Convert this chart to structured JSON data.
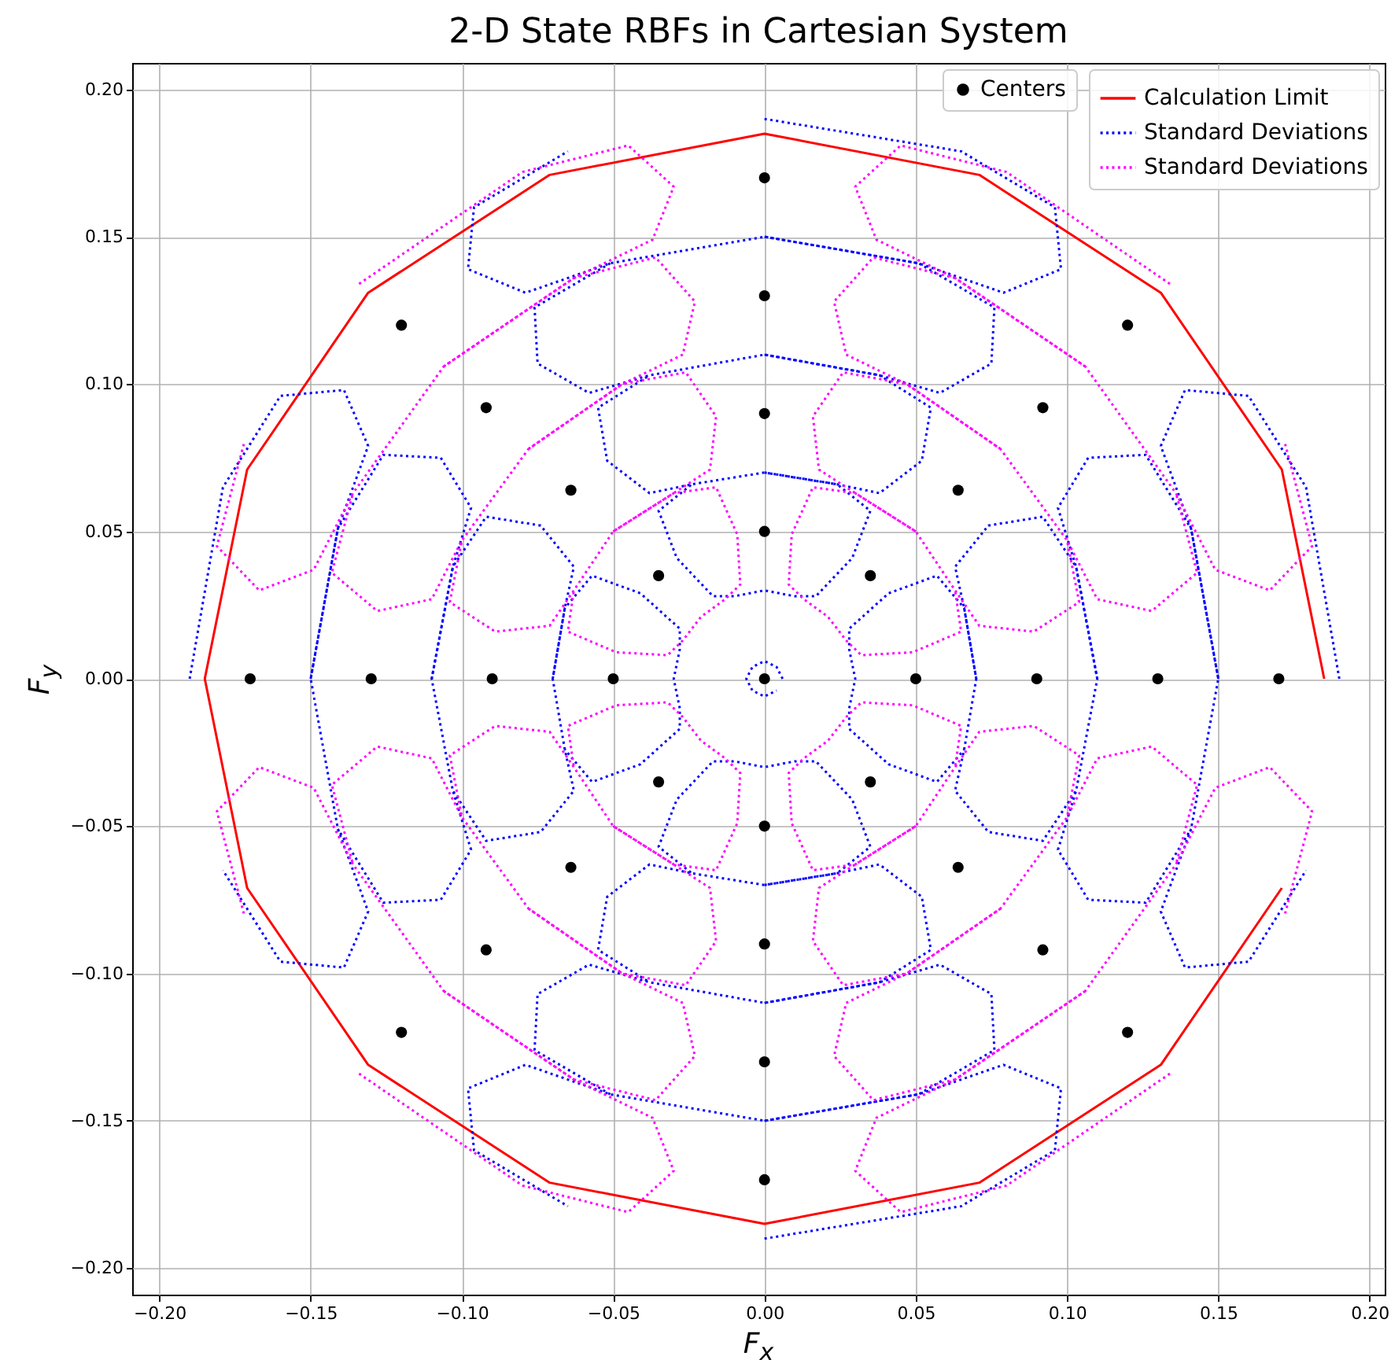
{
  "chart_data": {
    "type": "scatter",
    "title": "2-D State RBFs in Cartesian System",
    "xlabel": "F$_{x}$",
    "ylabel": "F$_{y}$",
    "xlim": [
      -0.209,
      0.205
    ],
    "ylim": [
      -0.209,
      0.209
    ],
    "xticks": [
      {
        "value": -0.2,
        "label": "−0.20"
      },
      {
        "value": -0.15,
        "label": "−0.15"
      },
      {
        "value": -0.1,
        "label": "−0.10"
      },
      {
        "value": -0.05,
        "label": "−0.05"
      },
      {
        "value": 0,
        "label": "0.00"
      },
      {
        "value": 0.05,
        "label": "0.05"
      },
      {
        "value": 0.1,
        "label": "0.10"
      },
      {
        "value": 0.15,
        "label": "0.15"
      },
      {
        "value": 0.2,
        "label": "0.20"
      }
    ],
    "yticks": [
      {
        "value": -0.2,
        "label": "−0.20"
      },
      {
        "value": -0.15,
        "label": "−0.15"
      },
      {
        "value": -0.1,
        "label": "−0.10"
      },
      {
        "value": -0.05,
        "label": "−0.05"
      },
      {
        "value": 0,
        "label": "0.00"
      },
      {
        "value": 0.05,
        "label": "0.05"
      },
      {
        "value": 0.1,
        "label": "0.10"
      },
      {
        "value": 0.15,
        "label": "0.15"
      },
      {
        "value": 0.2,
        "label": "0.20"
      }
    ],
    "grid": true,
    "legend": "top right",
    "line_style": "dotted",
    "series": [
      {
        "name": "Centers",
        "marker": "circle",
        "color": "#000000",
        "x": [
          0,
          0.05,
          0.035,
          0,
          -0.035,
          -0.05,
          -0.035,
          0,
          0.035,
          0.09,
          0.064,
          0,
          -0.064,
          -0.09,
          -0.064,
          0,
          0.064,
          0.13,
          0.092,
          0,
          -0.092,
          -0.13,
          -0.092,
          0,
          0.092,
          0.17,
          0.12,
          0,
          -0.12,
          -0.17,
          -0.12,
          0,
          0.12
        ],
        "values": [
          0,
          0,
          0.035,
          0.05,
          0.035,
          0,
          -0.035,
          -0.05,
          -0.035,
          0,
          0.064,
          0.09,
          0.064,
          0,
          -0.064,
          -0.09,
          -0.064,
          0,
          0.092,
          0.13,
          0.092,
          0,
          -0.092,
          -0.13,
          -0.092,
          0,
          0.12,
          0.17,
          0.12,
          0,
          -0.12,
          -0.17,
          -0.12
        ]
      },
      {
        "name": "Calculation Limit",
        "type": "line",
        "line_style": "solid",
        "color": "#ff0000",
        "x": [
          0.185,
          0.171,
          0.131,
          0.071,
          0,
          -0.071,
          -0.131,
          -0.171,
          -0.185,
          -0.171,
          -0.131,
          -0.071,
          0,
          0.071,
          0.131,
          0.171
        ],
        "values": [
          0,
          0.071,
          0.131,
          0.171,
          0.185,
          0.171,
          0.131,
          0.071,
          0,
          -0.071,
          -0.131,
          -0.171,
          -0.185,
          -0.171,
          -0.131,
          -0.071
        ]
      },
      {
        "name": "Standard Deviations",
        "type": "line",
        "color": "#0000ff",
        "x": [
          0,
          0.065,
          0.096,
          0.098,
          0.079,
          0.051,
          0,
          -0.051,
          -0.079,
          -0.098,
          -0.096,
          -0.065
        ],
        "values": [
          0.19,
          0.179,
          0.16,
          0.139,
          0.131,
          0.141,
          0.15,
          0.141,
          0.131,
          0.139,
          0.16,
          0.179
        ]
      },
      {
        "type": "line",
        "color": "#0000ff",
        "x": [
          0,
          0.065,
          0.096,
          0.098,
          0.079,
          0.051,
          0,
          -0.051,
          -0.079,
          -0.098,
          -0.096,
          -0.065
        ],
        "values": [
          -0.19,
          -0.179,
          -0.16,
          -0.139,
          -0.131,
          -0.141,
          -0.15,
          -0.141,
          -0.131,
          -0.139,
          -0.16,
          -0.179
        ]
      },
      {
        "type": "line",
        "color": "#0000ff",
        "x": [
          0.19,
          0.179,
          0.16,
          0.139,
          0.131,
          0.141,
          0.15,
          0.141,
          0.131,
          0.139,
          0.16,
          0.179
        ],
        "values": [
          0,
          0.065,
          0.096,
          0.098,
          0.079,
          0.051,
          0,
          -0.051,
          -0.079,
          -0.098,
          -0.096,
          -0.065
        ]
      },
      {
        "type": "line",
        "color": "#0000ff",
        "x": [
          -0.19,
          -0.179,
          -0.16,
          -0.139,
          -0.131,
          -0.141,
          -0.15,
          -0.141,
          -0.131,
          -0.139,
          -0.16,
          -0.179
        ],
        "values": [
          0,
          0.065,
          0.096,
          0.098,
          0.079,
          0.051,
          0,
          -0.051,
          -0.079,
          -0.098,
          -0.096,
          -0.065
        ]
      },
      {
        "type": "line",
        "color": "#0000ff",
        "x": [
          0,
          0.051,
          0.076,
          0.075,
          0.058,
          0.038,
          0,
          -0.038,
          -0.058,
          -0.075,
          -0.076,
          -0.051
        ],
        "values": [
          0.15,
          0.141,
          0.126,
          0.107,
          0.097,
          0.103,
          0.11,
          0.103,
          0.097,
          0.107,
          0.126,
          0.141
        ]
      },
      {
        "type": "line",
        "color": "#0000ff",
        "x": [
          0,
          0.051,
          0.076,
          0.075,
          0.058,
          0.038,
          0,
          -0.038,
          -0.058,
          -0.075,
          -0.076,
          -0.051
        ],
        "values": [
          -0.15,
          -0.141,
          -0.126,
          -0.107,
          -0.097,
          -0.103,
          -0.11,
          -0.103,
          -0.097,
          -0.107,
          -0.126,
          -0.141
        ]
      },
      {
        "type": "line",
        "color": "#0000ff",
        "x": [
          0.15,
          0.141,
          0.126,
          0.107,
          0.097,
          0.103,
          0.11,
          0.103,
          0.097,
          0.107,
          0.126,
          0.141
        ],
        "values": [
          0,
          0.051,
          0.076,
          0.075,
          0.058,
          0.038,
          0,
          -0.038,
          -0.058,
          -0.075,
          -0.076,
          -0.051
        ]
      },
      {
        "type": "line",
        "color": "#0000ff",
        "x": [
          -0.15,
          -0.141,
          -0.126,
          -0.107,
          -0.097,
          -0.103,
          -0.11,
          -0.103,
          -0.097,
          -0.107,
          -0.126,
          -0.141
        ],
        "values": [
          0,
          0.051,
          0.076,
          0.075,
          0.058,
          0.038,
          0,
          -0.038,
          -0.058,
          -0.075,
          -0.076,
          -0.051
        ]
      },
      {
        "type": "line",
        "color": "#0000ff",
        "x": [
          0,
          0.038,
          0.055,
          0.052,
          0.038,
          0.024,
          0,
          -0.024,
          -0.038,
          -0.052,
          -0.055,
          -0.038
        ],
        "values": [
          0.11,
          0.103,
          0.092,
          0.074,
          0.063,
          0.066,
          0.07,
          0.066,
          0.063,
          0.074,
          0.092,
          0.103
        ]
      },
      {
        "type": "line",
        "color": "#0000ff",
        "x": [
          0,
          0.038,
          0.055,
          0.052,
          0.038,
          0.024,
          0,
          -0.024,
          -0.038,
          -0.052,
          -0.055,
          -0.038
        ],
        "values": [
          -0.11,
          -0.103,
          -0.092,
          -0.074,
          -0.063,
          -0.066,
          -0.07,
          -0.066,
          -0.063,
          -0.074,
          -0.092,
          -0.103
        ]
      },
      {
        "type": "line",
        "color": "#0000ff",
        "x": [
          0.11,
          0.103,
          0.092,
          0.074,
          0.063,
          0.066,
          0.07,
          0.066,
          0.063,
          0.074,
          0.092,
          0.103
        ],
        "values": [
          0,
          0.038,
          0.055,
          0.052,
          0.038,
          0.024,
          0,
          -0.024,
          -0.038,
          -0.052,
          -0.055,
          -0.038
        ]
      },
      {
        "type": "line",
        "color": "#0000ff",
        "x": [
          -0.11,
          -0.103,
          -0.092,
          -0.074,
          -0.063,
          -0.066,
          -0.07,
          -0.066,
          -0.063,
          -0.074,
          -0.092,
          -0.103
        ],
        "values": [
          0,
          0.038,
          0.055,
          0.052,
          0.038,
          0.024,
          0,
          -0.024,
          -0.038,
          -0.052,
          -0.055,
          -0.038
        ]
      },
      {
        "type": "line",
        "color": "#0000ff",
        "x": [
          0,
          0.024,
          0.035,
          0.029,
          0.017,
          0.01,
          0,
          -0.01,
          -0.017,
          -0.029,
          -0.035,
          -0.024
        ],
        "values": [
          0.07,
          0.066,
          0.057,
          0.041,
          0.028,
          0.028,
          0.03,
          0.028,
          0.028,
          0.041,
          0.057,
          0.066
        ]
      },
      {
        "type": "line",
        "color": "#0000ff",
        "x": [
          0,
          0.024,
          0.035,
          0.029,
          0.017,
          0.01,
          0,
          -0.01,
          -0.017,
          -0.029,
          -0.035,
          -0.024
        ],
        "values": [
          -0.07,
          -0.066,
          -0.057,
          -0.041,
          -0.028,
          -0.028,
          -0.03,
          -0.028,
          -0.028,
          -0.041,
          -0.057,
          -0.066
        ]
      },
      {
        "type": "line",
        "color": "#0000ff",
        "x": [
          0.07,
          0.066,
          0.057,
          0.041,
          0.028,
          0.028,
          0.03,
          0.028,
          0.028,
          0.041,
          0.057,
          0.066
        ],
        "values": [
          0,
          0.024,
          0.035,
          0.029,
          0.017,
          0.01,
          0,
          -0.01,
          -0.017,
          -0.029,
          -0.035,
          -0.024
        ]
      },
      {
        "type": "line",
        "color": "#0000ff",
        "x": [
          -0.07,
          -0.066,
          -0.057,
          -0.041,
          -0.028,
          -0.028,
          -0.03,
          -0.028,
          -0.028,
          -0.041,
          -0.057,
          -0.066
        ],
        "values": [
          0,
          0.024,
          0.035,
          0.029,
          0.017,
          0.01,
          0,
          -0.01,
          -0.017,
          -0.029,
          -0.035,
          -0.024
        ]
      },
      {
        "type": "line",
        "color": "#0000ff",
        "x": [
          0.006,
          0.004,
          0,
          -0.004,
          -0.006,
          -0.004,
          0,
          0.004
        ],
        "values": [
          0,
          0.004,
          0.006,
          0.004,
          0,
          -0.004,
          -0.006,
          -0.004
        ]
      },
      {
        "name": "Standard Deviations",
        "type": "line",
        "color": "#ff00ff",
        "x": [
          0.134,
          0.08,
          0.045,
          0.03,
          0.037,
          0.063,
          0.106,
          0.136,
          0.149,
          0.167,
          0.181,
          0.172
        ],
        "values": [
          0.134,
          0.172,
          0.181,
          0.167,
          0.149,
          0.136,
          0.106,
          0.063,
          0.037,
          0.03,
          0.045,
          0.08
        ]
      },
      {
        "type": "line",
        "color": "#ff00ff",
        "x": [
          -0.134,
          -0.08,
          -0.045,
          -0.03,
          -0.037,
          -0.063,
          -0.106,
          -0.136,
          -0.149,
          -0.167,
          -0.181,
          -0.172
        ],
        "values": [
          0.134,
          0.172,
          0.181,
          0.167,
          0.149,
          0.136,
          0.106,
          0.063,
          0.037,
          0.03,
          0.045,
          0.08
        ]
      },
      {
        "type": "line",
        "color": "#ff00ff",
        "x": [
          -0.134,
          -0.08,
          -0.045,
          -0.03,
          -0.037,
          -0.063,
          -0.106,
          -0.136,
          -0.149,
          -0.167,
          -0.181,
          -0.172
        ],
        "values": [
          -0.134,
          -0.172,
          -0.181,
          -0.167,
          -0.149,
          -0.136,
          -0.106,
          -0.063,
          -0.037,
          -0.03,
          -0.045,
          -0.08
        ]
      },
      {
        "type": "line",
        "color": "#ff00ff",
        "x": [
          0.134,
          0.08,
          0.045,
          0.03,
          0.037,
          0.063,
          0.106,
          0.136,
          0.149,
          0.167,
          0.181,
          0.172
        ],
        "values": [
          -0.134,
          -0.172,
          -0.181,
          -0.167,
          -0.149,
          -0.136,
          -0.106,
          -0.063,
          -0.037,
          -0.03,
          -0.045,
          -0.08
        ]
      },
      {
        "type": "line",
        "color": "#ff00ff",
        "x": [
          0.106,
          0.063,
          0.036,
          0.023,
          0.027,
          0.047,
          0.078,
          0.1,
          0.11,
          0.128,
          0.143,
          0.136
        ],
        "values": [
          0.106,
          0.136,
          0.143,
          0.128,
          0.11,
          0.1,
          0.078,
          0.047,
          0.027,
          0.023,
          0.036,
          0.063
        ]
      },
      {
        "type": "line",
        "color": "#ff00ff",
        "x": [
          -0.106,
          -0.063,
          -0.036,
          -0.023,
          -0.027,
          -0.047,
          -0.078,
          -0.1,
          -0.11,
          -0.128,
          -0.143,
          -0.136
        ],
        "values": [
          0.106,
          0.136,
          0.143,
          0.128,
          0.11,
          0.1,
          0.078,
          0.047,
          0.027,
          0.023,
          0.036,
          0.063
        ]
      },
      {
        "type": "line",
        "color": "#ff00ff",
        "x": [
          -0.106,
          -0.063,
          -0.036,
          -0.023,
          -0.027,
          -0.047,
          -0.078,
          -0.1,
          -0.11,
          -0.128,
          -0.143,
          -0.136
        ],
        "values": [
          -0.106,
          -0.136,
          -0.143,
          -0.128,
          -0.11,
          -0.1,
          -0.078,
          -0.047,
          -0.027,
          -0.023,
          -0.036,
          -0.063
        ]
      },
      {
        "type": "line",
        "color": "#ff00ff",
        "x": [
          0.106,
          0.063,
          0.036,
          0.023,
          0.027,
          0.047,
          0.078,
          0.1,
          0.11,
          0.128,
          0.143,
          0.136
        ],
        "values": [
          -0.106,
          -0.136,
          -0.143,
          -0.128,
          -0.11,
          -0.1,
          -0.078,
          -0.047,
          -0.027,
          -0.023,
          -0.036,
          -0.063
        ]
      },
      {
        "type": "line",
        "color": "#ff00ff",
        "x": [
          0.078,
          0.047,
          0.026,
          0.016,
          0.018,
          0.03,
          0.05,
          0.063,
          0.071,
          0.089,
          0.104,
          0.1
        ],
        "values": [
          0.078,
          0.1,
          0.104,
          0.089,
          0.071,
          0.063,
          0.05,
          0.03,
          0.018,
          0.016,
          0.026,
          0.047
        ]
      },
      {
        "type": "line",
        "color": "#ff00ff",
        "x": [
          -0.078,
          -0.047,
          -0.026,
          -0.016,
          -0.018,
          -0.03,
          -0.05,
          -0.063,
          -0.071,
          -0.089,
          -0.104,
          -0.1
        ],
        "values": [
          0.078,
          0.1,
          0.104,
          0.089,
          0.071,
          0.063,
          0.05,
          0.03,
          0.018,
          0.016,
          0.026,
          0.047
        ]
      },
      {
        "type": "line",
        "color": "#ff00ff",
        "x": [
          -0.078,
          -0.047,
          -0.026,
          -0.016,
          -0.018,
          -0.03,
          -0.05,
          -0.063,
          -0.071,
          -0.089,
          -0.104,
          -0.1
        ],
        "values": [
          -0.078,
          -0.1,
          -0.104,
          -0.089,
          -0.071,
          -0.063,
          -0.05,
          -0.03,
          -0.018,
          -0.016,
          -0.026,
          -0.047
        ]
      },
      {
        "type": "line",
        "color": "#ff00ff",
        "x": [
          0.078,
          0.047,
          0.026,
          0.016,
          0.018,
          0.03,
          0.05,
          0.063,
          0.071,
          0.089,
          0.104,
          0.1
        ],
        "values": [
          -0.078,
          -0.1,
          -0.104,
          -0.089,
          -0.071,
          -0.063,
          -0.05,
          -0.03,
          -0.018,
          -0.016,
          -0.026,
          -0.047
        ]
      },
      {
        "type": "line",
        "color": "#ff00ff",
        "x": [
          0.05,
          0.03,
          0.016,
          0.009,
          0.008,
          0.013,
          0.021,
          0.027,
          0.032,
          0.049,
          0.065,
          0.063
        ],
        "values": [
          0.05,
          0.063,
          0.065,
          0.049,
          0.032,
          0.027,
          0.021,
          0.013,
          0.008,
          0.009,
          0.016,
          0.03
        ]
      },
      {
        "type": "line",
        "color": "#ff00ff",
        "x": [
          -0.05,
          -0.03,
          -0.016,
          -0.009,
          -0.008,
          -0.013,
          -0.021,
          -0.027,
          -0.032,
          -0.049,
          -0.065,
          -0.063
        ],
        "values": [
          0.05,
          0.063,
          0.065,
          0.049,
          0.032,
          0.027,
          0.021,
          0.013,
          0.008,
          0.009,
          0.016,
          0.03
        ]
      },
      {
        "type": "line",
        "color": "#ff00ff",
        "x": [
          -0.05,
          -0.03,
          -0.016,
          -0.009,
          -0.008,
          -0.013,
          -0.021,
          -0.027,
          -0.032,
          -0.049,
          -0.065,
          -0.063
        ],
        "values": [
          -0.05,
          -0.063,
          -0.065,
          -0.049,
          -0.032,
          -0.027,
          -0.021,
          -0.013,
          -0.008,
          -0.009,
          -0.016,
          -0.03
        ]
      },
      {
        "type": "line",
        "color": "#ff00ff",
        "x": [
          0.05,
          0.03,
          0.016,
          0.009,
          0.008,
          0.013,
          0.021,
          0.027,
          0.032,
          0.049,
          0.065,
          0.063
        ],
        "values": [
          -0.05,
          -0.063,
          -0.065,
          -0.049,
          -0.032,
          -0.027,
          -0.021,
          -0.013,
          -0.008,
          -0.009,
          -0.016,
          -0.03
        ]
      }
    ]
  }
}
